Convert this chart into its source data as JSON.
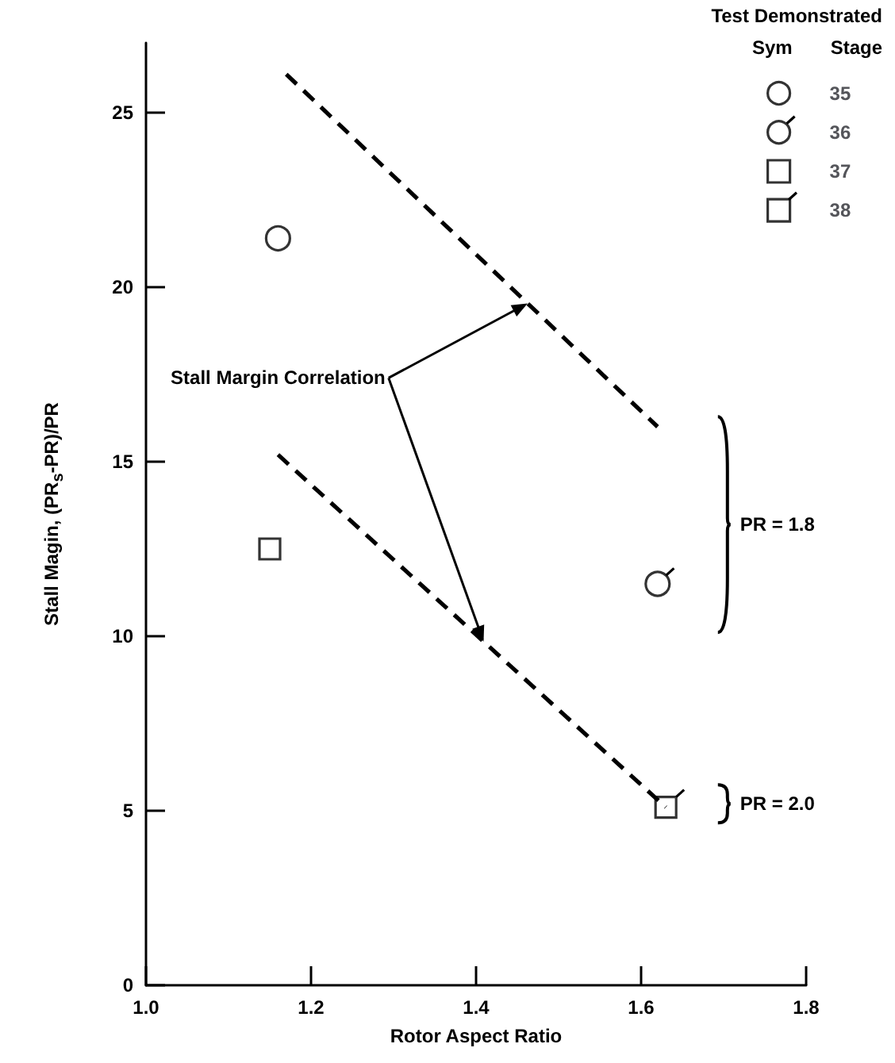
{
  "chart_data": {
    "type": "scatter",
    "xlabel": "Rotor Aspect Ratio",
    "ylabel": "Stall Magin, (PR$_{s}$-PR)/PR",
    "legend_title": "Test Demonstrated",
    "legend": "top right",
    "xlim": [
      1.0,
      1.8
    ],
    "ylim": [
      0,
      27
    ],
    "xticks": [
      {
        "value": 1.0,
        "label": "1.0"
      },
      {
        "value": 1.2,
        "label": "1.2"
      },
      {
        "value": 1.4,
        "label": "1.4"
      },
      {
        "value": 1.6,
        "label": "1.6"
      },
      {
        "value": 1.8,
        "label": "1.8"
      }
    ],
    "yticks": [
      0,
      5,
      10,
      15,
      20,
      25
    ],
    "grid": false,
    "series": [
      {
        "name": "35",
        "color": "#000000",
        "marker": "circle",
        "x": [
          1.16
        ],
        "values": [
          21.4
        ]
      },
      {
        "name": "36",
        "color": "#000000",
        "marker": "circle",
        "x": [
          1.62
        ],
        "values": [
          11.5
        ]
      },
      {
        "name": "37",
        "color": "#000000",
        "marker": "square",
        "x": [
          1.15
        ],
        "values": [
          12.5
        ]
      },
      {
        "name": "38",
        "color": "#000000",
        "marker": "square",
        "x": [
          1.63
        ],
        "values": [
          5.1
        ]
      },
      {
        "type": "line",
        "color": "#000000",
        "line_style": "dashed",
        "marker": "none",
        "x": [
          1.17,
          1.62
        ],
        "values": [
          26.1,
          16.0
        ]
      },
      {
        "type": "line",
        "color": "#000000",
        "line_style": "dashed",
        "marker": "none",
        "x": [
          1.16,
          1.63
        ],
        "values": [
          15.2,
          5.1
        ]
      }
    ],
    "annotations": [
      "Stall Margin Correlation",
      "PR = 1.8",
      "PR = 2.0",
      "Sym",
      "Stage"
    ]
  }
}
